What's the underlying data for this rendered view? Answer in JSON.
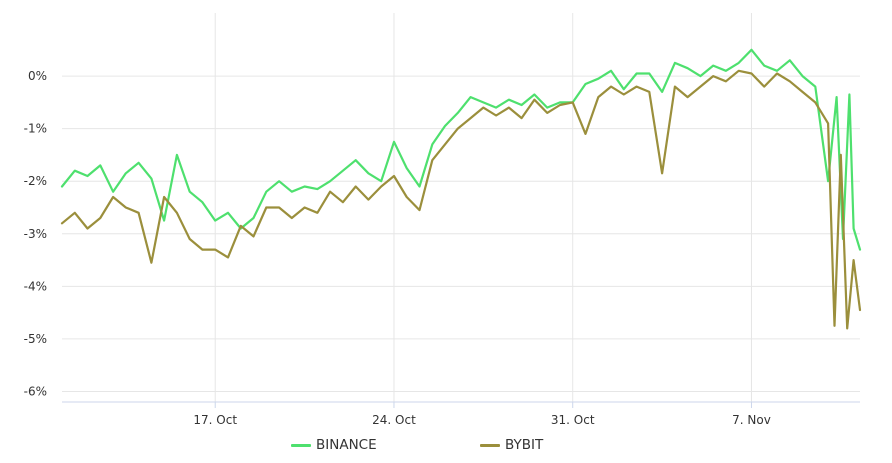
{
  "chart_data": {
    "type": "line",
    "title": "",
    "xlabel": "",
    "ylabel": "",
    "x_range": [
      "2023-10-11",
      "2023-11-11"
    ],
    "ylim": [
      -6.2,
      1.2
    ],
    "y_tick_values": [
      0,
      -1,
      -2,
      -3,
      -4,
      -5,
      -6
    ],
    "y_tick_labels": [
      "0%",
      "-1%",
      "-2%",
      "-3%",
      "-4%",
      "-5%",
      "-6%"
    ],
    "x_ticks": [
      {
        "date": "2023-10-17",
        "label": "17. Oct"
      },
      {
        "date": "2023-10-24",
        "label": "24. Oct"
      },
      {
        "date": "2023-10-31",
        "label": "31. Oct"
      },
      {
        "date": "2023-11-07",
        "label": "7. Nov"
      }
    ],
    "grid": true,
    "legend_position": "bottom-center",
    "series": [
      {
        "name": "BINANCE",
        "color": "#4ee06e",
        "points": [
          [
            "2023-10-11",
            -2.1
          ],
          [
            "2023-10-11 12:00",
            -1.8
          ],
          [
            "2023-10-12",
            -1.9
          ],
          [
            "2023-10-12 12:00",
            -1.7
          ],
          [
            "2023-10-13",
            -2.2
          ],
          [
            "2023-10-13 12:00",
            -1.85
          ],
          [
            "2023-10-14",
            -1.65
          ],
          [
            "2023-10-14 12:00",
            -1.95
          ],
          [
            "2023-10-15",
            -2.75
          ],
          [
            "2023-10-15 12:00",
            -1.5
          ],
          [
            "2023-10-16",
            -2.2
          ],
          [
            "2023-10-16 12:00",
            -2.4
          ],
          [
            "2023-10-17",
            -2.75
          ],
          [
            "2023-10-17 12:00",
            -2.6
          ],
          [
            "2023-10-18",
            -2.9
          ],
          [
            "2023-10-18 12:00",
            -2.7
          ],
          [
            "2023-10-19",
            -2.2
          ],
          [
            "2023-10-19 12:00",
            -2.0
          ],
          [
            "2023-10-20",
            -2.2
          ],
          [
            "2023-10-20 12:00",
            -2.1
          ],
          [
            "2023-10-21",
            -2.15
          ],
          [
            "2023-10-21 12:00",
            -2.0
          ],
          [
            "2023-10-22",
            -1.8
          ],
          [
            "2023-10-22 12:00",
            -1.6
          ],
          [
            "2023-10-23",
            -1.85
          ],
          [
            "2023-10-23 12:00",
            -2.0
          ],
          [
            "2023-10-24",
            -1.25
          ],
          [
            "2023-10-24 12:00",
            -1.75
          ],
          [
            "2023-10-25",
            -2.1
          ],
          [
            "2023-10-25 12:00",
            -1.3
          ],
          [
            "2023-10-26",
            -0.95
          ],
          [
            "2023-10-26 12:00",
            -0.7
          ],
          [
            "2023-10-27",
            -0.4
          ],
          [
            "2023-10-27 12:00",
            -0.5
          ],
          [
            "2023-10-28",
            -0.6
          ],
          [
            "2023-10-28 12:00",
            -0.45
          ],
          [
            "2023-10-29",
            -0.55
          ],
          [
            "2023-10-29 12:00",
            -0.35
          ],
          [
            "2023-10-30",
            -0.6
          ],
          [
            "2023-10-30 12:00",
            -0.5
          ],
          [
            "2023-10-31",
            -0.5
          ],
          [
            "2023-10-31 12:00",
            -0.15
          ],
          [
            "2023-11-01",
            -0.05
          ],
          [
            "2023-11-01 12:00",
            0.1
          ],
          [
            "2023-11-02",
            -0.25
          ],
          [
            "2023-11-02 12:00",
            0.05
          ],
          [
            "2023-11-03",
            0.05
          ],
          [
            "2023-11-03 12:00",
            -0.3
          ],
          [
            "2023-11-04",
            0.25
          ],
          [
            "2023-11-04 12:00",
            0.15
          ],
          [
            "2023-11-05",
            0.0
          ],
          [
            "2023-11-05 12:00",
            0.2
          ],
          [
            "2023-11-06",
            0.1
          ],
          [
            "2023-11-06 12:00",
            0.25
          ],
          [
            "2023-11-07",
            0.5
          ],
          [
            "2023-11-07 12:00",
            0.2
          ],
          [
            "2023-11-08",
            0.1
          ],
          [
            "2023-11-08 12:00",
            0.3
          ],
          [
            "2023-11-09",
            0.0
          ],
          [
            "2023-11-09 12:00",
            -0.2
          ],
          [
            "2023-11-10",
            -2.0
          ],
          [
            "2023-11-10 08:00",
            -0.4
          ],
          [
            "2023-11-10 14:00",
            -3.1
          ],
          [
            "2023-11-10 20:00",
            -0.35
          ],
          [
            "2023-11-11",
            -2.9
          ],
          [
            "2023-11-11 06:00",
            -3.3
          ]
        ]
      },
      {
        "name": "BYBIT",
        "color": "#9b8f3c",
        "points": [
          [
            "2023-10-11",
            -2.8
          ],
          [
            "2023-10-11 12:00",
            -2.6
          ],
          [
            "2023-10-12",
            -2.9
          ],
          [
            "2023-10-12 12:00",
            -2.7
          ],
          [
            "2023-10-13",
            -2.3
          ],
          [
            "2023-10-13 12:00",
            -2.5
          ],
          [
            "2023-10-14",
            -2.6
          ],
          [
            "2023-10-14 12:00",
            -3.55
          ],
          [
            "2023-10-15",
            -2.3
          ],
          [
            "2023-10-15 12:00",
            -2.6
          ],
          [
            "2023-10-16",
            -3.1
          ],
          [
            "2023-10-16 12:00",
            -3.3
          ],
          [
            "2023-10-17",
            -3.3
          ],
          [
            "2023-10-17 12:00",
            -3.45
          ],
          [
            "2023-10-18",
            -2.85
          ],
          [
            "2023-10-18 12:00",
            -3.05
          ],
          [
            "2023-10-19",
            -2.5
          ],
          [
            "2023-10-19 12:00",
            -2.5
          ],
          [
            "2023-10-20",
            -2.7
          ],
          [
            "2023-10-20 12:00",
            -2.5
          ],
          [
            "2023-10-21",
            -2.6
          ],
          [
            "2023-10-21 12:00",
            -2.2
          ],
          [
            "2023-10-22",
            -2.4
          ],
          [
            "2023-10-22 12:00",
            -2.1
          ],
          [
            "2023-10-23",
            -2.35
          ],
          [
            "2023-10-23 12:00",
            -2.1
          ],
          [
            "2023-10-24",
            -1.9
          ],
          [
            "2023-10-24 12:00",
            -2.3
          ],
          [
            "2023-10-25",
            -2.55
          ],
          [
            "2023-10-25 12:00",
            -1.6
          ],
          [
            "2023-10-26",
            -1.3
          ],
          [
            "2023-10-26 12:00",
            -1.0
          ],
          [
            "2023-10-27",
            -0.8
          ],
          [
            "2023-10-27 12:00",
            -0.6
          ],
          [
            "2023-10-28",
            -0.75
          ],
          [
            "2023-10-28 12:00",
            -0.6
          ],
          [
            "2023-10-29",
            -0.8
          ],
          [
            "2023-10-29 12:00",
            -0.45
          ],
          [
            "2023-10-30",
            -0.7
          ],
          [
            "2023-10-30 12:00",
            -0.55
          ],
          [
            "2023-10-31",
            -0.5
          ],
          [
            "2023-10-31 12:00",
            -1.1
          ],
          [
            "2023-11-01",
            -0.4
          ],
          [
            "2023-11-01 12:00",
            -0.2
          ],
          [
            "2023-11-02",
            -0.35
          ],
          [
            "2023-11-02 12:00",
            -0.2
          ],
          [
            "2023-11-03",
            -0.3
          ],
          [
            "2023-11-03 12:00",
            -1.85
          ],
          [
            "2023-11-04",
            -0.2
          ],
          [
            "2023-11-04 12:00",
            -0.4
          ],
          [
            "2023-11-05",
            -0.2
          ],
          [
            "2023-11-05 12:00",
            0.0
          ],
          [
            "2023-11-06",
            -0.1
          ],
          [
            "2023-11-06 12:00",
            0.1
          ],
          [
            "2023-11-07",
            0.05
          ],
          [
            "2023-11-07 12:00",
            -0.2
          ],
          [
            "2023-11-08",
            0.05
          ],
          [
            "2023-11-08 12:00",
            -0.1
          ],
          [
            "2023-11-09",
            -0.3
          ],
          [
            "2023-11-09 12:00",
            -0.5
          ],
          [
            "2023-11-10",
            -0.9
          ],
          [
            "2023-11-10 06:00",
            -4.75
          ],
          [
            "2023-11-10 12:00",
            -1.5
          ],
          [
            "2023-11-10 18:00",
            -4.8
          ],
          [
            "2023-11-11",
            -3.5
          ],
          [
            "2023-11-11 06:00",
            -4.45
          ]
        ]
      }
    ]
  }
}
